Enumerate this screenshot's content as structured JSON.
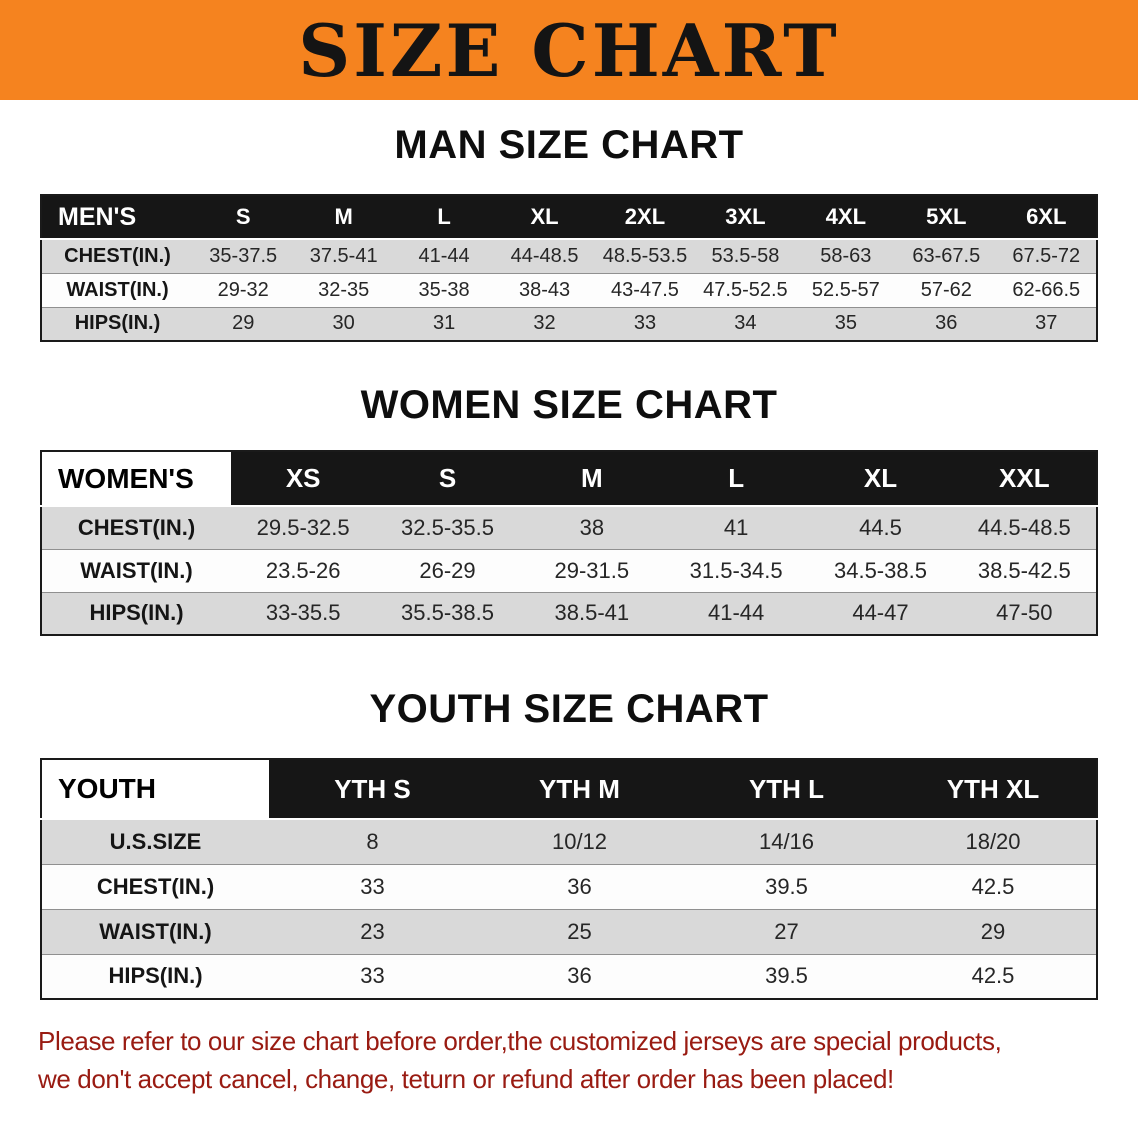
{
  "banner": {
    "title": "SIZE CHART"
  },
  "colors": {
    "banner_bg": "#f5831f",
    "header_bg": "#161616",
    "shaded_row": "#d9d9d9",
    "disclaimer_text": "#991b12"
  },
  "sections": [
    {
      "heading": "MAN SIZE CHART",
      "table": {
        "corner_inverted": false,
        "header": [
          "MEN'S",
          "S",
          "M",
          "L",
          "XL",
          "2XL",
          "3XL",
          "4XL",
          "5XL",
          "6XL"
        ],
        "rows": [
          {
            "label": "CHEST(IN.)",
            "values": [
              "35-37.5",
              "37.5-41",
              "41-44",
              "44-48.5",
              "48.5-53.5",
              "53.5-58",
              "58-63",
              "63-67.5",
              "67.5-72"
            ]
          },
          {
            "label": "WAIST(IN.)",
            "values": [
              "29-32",
              "32-35",
              "35-38",
              "38-43",
              "43-47.5",
              "47.5-52.5",
              "52.5-57",
              "57-62",
              "62-66.5"
            ]
          },
          {
            "label": "HIPS(IN.)",
            "values": [
              "29",
              "30",
              "31",
              "32",
              "33",
              "34",
              "35",
              "36",
              "37"
            ]
          }
        ]
      }
    },
    {
      "heading": "WOMEN SIZE CHART",
      "table": {
        "corner_inverted": true,
        "header": [
          "WOMEN'S",
          "XS",
          "S",
          "M",
          "L",
          "XL",
          "XXL"
        ],
        "rows": [
          {
            "label": "CHEST(IN.)",
            "values": [
              "29.5-32.5",
              "32.5-35.5",
              "38",
              "41",
              "44.5",
              "44.5-48.5"
            ]
          },
          {
            "label": "WAIST(IN.)",
            "values": [
              "23.5-26",
              "26-29",
              "29-31.5",
              "31.5-34.5",
              "34.5-38.5",
              "38.5-42.5"
            ]
          },
          {
            "label": "HIPS(IN.)",
            "values": [
              "33-35.5",
              "35.5-38.5",
              "38.5-41",
              "41-44",
              "44-47",
              "47-50"
            ]
          }
        ]
      }
    },
    {
      "heading": "YOUTH SIZE CHART",
      "table": {
        "corner_inverted": true,
        "header": [
          "YOUTH",
          "YTH S",
          "YTH M",
          "YTH L",
          "YTH XL"
        ],
        "rows": [
          {
            "label": "U.S.SIZE",
            "values": [
              "8",
              "10/12",
              "14/16",
              "18/20"
            ]
          },
          {
            "label": "CHEST(IN.)",
            "values": [
              "33",
              "36",
              "39.5",
              "42.5"
            ]
          },
          {
            "label": "WAIST(IN.)",
            "values": [
              "23",
              "25",
              "27",
              "29"
            ]
          },
          {
            "label": "HIPS(IN.)",
            "values": [
              "33",
              "36",
              "39.5",
              "42.5"
            ]
          }
        ]
      }
    }
  ],
  "disclaimer": {
    "lines": [
      "Please refer to our size chart before order,the customized jerseys are special products,",
      "we don't accept cancel, change, teturn or refund after order has been placed!"
    ]
  }
}
